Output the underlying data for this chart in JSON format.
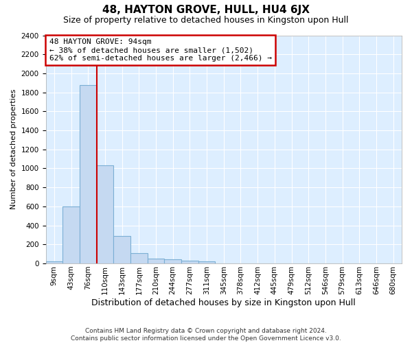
{
  "title": "48, HAYTON GROVE, HULL, HU4 6JX",
  "subtitle": "Size of property relative to detached houses in Kingston upon Hull",
  "xlabel": "Distribution of detached houses by size in Kingston upon Hull",
  "ylabel": "Number of detached properties",
  "footer1": "Contains HM Land Registry data © Crown copyright and database right 2024.",
  "footer2": "Contains public sector information licensed under the Open Government Licence v3.0.",
  "bin_labels": [
    "9sqm",
    "43sqm",
    "76sqm",
    "110sqm",
    "143sqm",
    "177sqm",
    "210sqm",
    "244sqm",
    "277sqm",
    "311sqm",
    "345sqm",
    "378sqm",
    "412sqm",
    "445sqm",
    "479sqm",
    "512sqm",
    "546sqm",
    "579sqm",
    "613sqm",
    "646sqm",
    "680sqm"
  ],
  "bar_heights": [
    20,
    600,
    1880,
    1030,
    290,
    110,
    50,
    40,
    30,
    20,
    0,
    0,
    0,
    0,
    0,
    0,
    0,
    0,
    0,
    0,
    0
  ],
  "bar_color": "#c5d9f1",
  "bar_edge_color": "#7bafd4",
  "ylim_max": 2400,
  "ytick_step": 200,
  "red_line_x": 2.5,
  "annotation_line1": "48 HAYTON GROVE: 94sqm",
  "annotation_line2": "← 38% of detached houses are smaller (1,502)",
  "annotation_line3": "62% of semi-detached houses are larger (2,466) →",
  "annotation_box_edgecolor": "#cc0000",
  "plot_bg_color": "#ddeeff",
  "grid_color": "#ffffff",
  "fig_bg": "#ffffff",
  "title_fontsize": 11,
  "subtitle_fontsize": 9,
  "ylabel_fontsize": 8,
  "xlabel_fontsize": 9,
  "tick_fontsize": 7.5,
  "footer_fontsize": 6.5,
  "annotation_fontsize": 8,
  "figsize": [
    6.0,
    5.0
  ],
  "dpi": 100
}
